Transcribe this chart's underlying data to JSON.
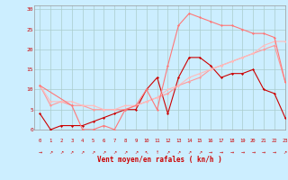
{
  "background_color": "#cceeff",
  "grid_color": "#aacccc",
  "xlabel": "Vent moyen/en rafales ( kn/h )",
  "xlim": [
    -0.5,
    23
  ],
  "ylim": [
    0,
    31
  ],
  "yticks": [
    0,
    5,
    10,
    15,
    20,
    25,
    30
  ],
  "xticks": [
    0,
    1,
    2,
    3,
    4,
    5,
    6,
    7,
    8,
    9,
    10,
    11,
    12,
    13,
    14,
    15,
    16,
    17,
    18,
    19,
    20,
    21,
    22,
    23
  ],
  "s1_x": [
    0,
    1,
    2,
    3,
    4,
    5,
    6,
    7,
    8,
    9,
    10,
    11,
    12,
    13,
    14,
    15,
    16,
    17,
    18,
    19,
    20,
    21,
    22,
    23
  ],
  "s1_y": [
    4,
    0,
    1,
    1,
    1,
    2,
    3,
    4,
    5,
    5,
    10,
    13,
    4,
    13,
    18,
    18,
    16,
    13,
    14,
    14,
    15,
    10,
    9,
    3
  ],
  "s1_color": "#cc0000",
  "s2_x": [
    0,
    1,
    2,
    3,
    4,
    5,
    6,
    7,
    8,
    9,
    10,
    11,
    12,
    13,
    14,
    15,
    16,
    17,
    18,
    19,
    20,
    21,
    22,
    23
  ],
  "s2_y": [
    11,
    6,
    7,
    6,
    6,
    5,
    5,
    5,
    5,
    6,
    7,
    8,
    9,
    11,
    12,
    13,
    15,
    16,
    17,
    18,
    19,
    20,
    21,
    12
  ],
  "s2_color": "#ff9999",
  "s3_x": [
    0,
    1,
    2,
    3,
    4,
    5,
    6,
    7,
    8,
    9,
    10,
    11,
    12,
    13,
    14,
    15,
    16,
    17,
    18,
    19,
    20,
    21,
    22,
    23
  ],
  "s3_y": [
    11,
    7,
    7,
    7,
    6,
    6,
    5,
    5,
    6,
    6,
    7,
    8,
    10,
    11,
    13,
    14,
    15,
    16,
    17,
    18,
    19,
    21,
    22,
    22
  ],
  "s3_color": "#ffbbbb",
  "s4_x": [
    0,
    3,
    4,
    5,
    6,
    7,
    8,
    9,
    10,
    11,
    12,
    13,
    14,
    15,
    16,
    17,
    18,
    19,
    20,
    21,
    22,
    23
  ],
  "s4_y": [
    11,
    6,
    0,
    0,
    1,
    0,
    5,
    6,
    10,
    5,
    16,
    26,
    29,
    28,
    27,
    26,
    26,
    25,
    24,
    24,
    23,
    12
  ],
  "s4_color": "#ff7777",
  "arrow_chars": [
    "→",
    "↗",
    "↗",
    "↗",
    "↗",
    "↗",
    "↗",
    "↗",
    "↗",
    "↗",
    "↖",
    "↑",
    "↗",
    "↗",
    "↗",
    "↗",
    "→",
    "→",
    "→",
    "→",
    "→",
    "→",
    "→",
    "↗"
  ]
}
